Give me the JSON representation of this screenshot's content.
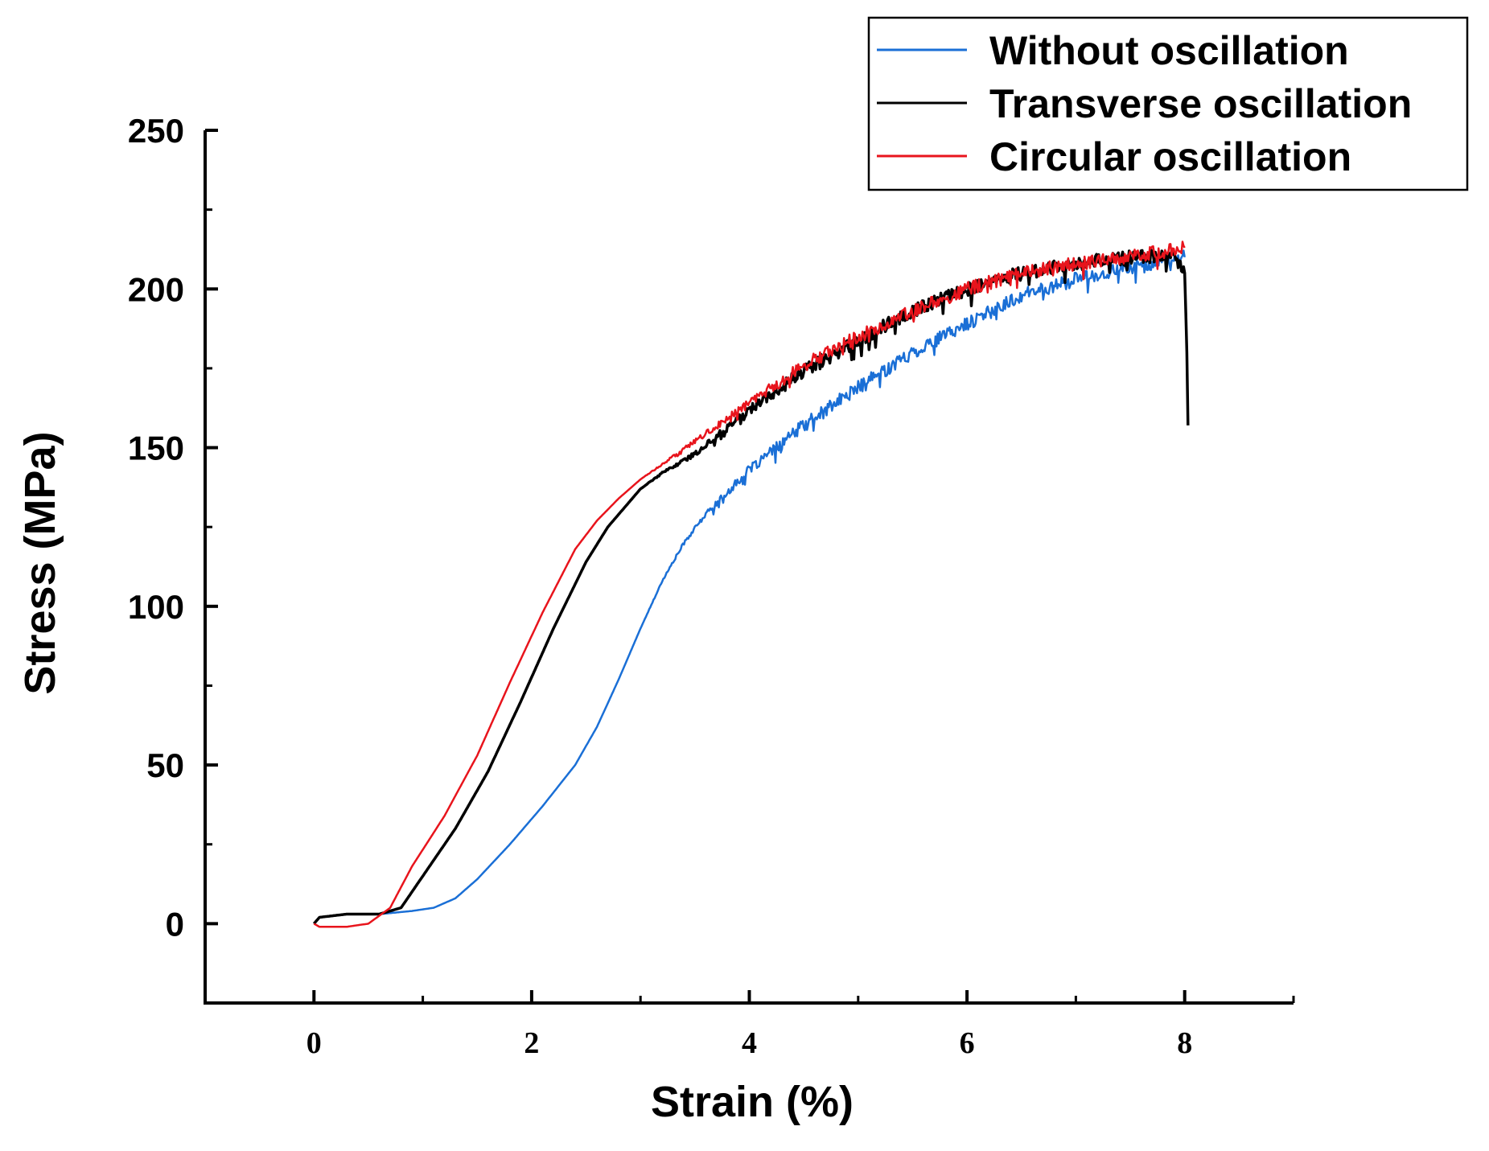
{
  "chart_data": {
    "type": "line",
    "title": "",
    "xlabel": "Strain (%)",
    "ylabel": "Stress (MPa)",
    "xlim": [
      -1,
      9
    ],
    "ylim": [
      -25,
      250
    ],
    "xticks": [
      0,
      2,
      4,
      6,
      8
    ],
    "yticks": [
      0,
      50,
      100,
      150,
      200,
      250
    ],
    "grid": false,
    "legend_position": "top-right",
    "colors": {
      "axis": "#000000",
      "without": "#1a6fd6",
      "transverse": "#000000",
      "circular": "#e8141c"
    },
    "series": [
      {
        "name": "Without oscillation",
        "color": "#1a6fd6",
        "noise": 2.2,
        "x": [
          0,
          0.05,
          0.3,
          0.6,
          0.9,
          1.1,
          1.3,
          1.5,
          1.8,
          2.1,
          2.4,
          2.6,
          2.8,
          3.0,
          3.2,
          3.4,
          3.6,
          3.8,
          4.0,
          4.5,
          5.0,
          5.5,
          6.0,
          6.5,
          7.0,
          7.5,
          8.0
        ],
        "y": [
          0,
          2,
          3,
          3,
          4,
          5,
          8,
          14,
          25,
          37,
          50,
          62,
          77,
          93,
          108,
          120,
          129,
          136,
          143,
          157,
          169,
          180,
          189,
          198,
          203,
          207,
          210
        ]
      },
      {
        "name": "Transverse oscillation",
        "color": "#000000",
        "noise": 2.2,
        "x": [
          0,
          0.05,
          0.3,
          0.6,
          0.8,
          1.0,
          1.3,
          1.6,
          1.9,
          2.2,
          2.5,
          2.7,
          2.9,
          3.0,
          3.2,
          3.5,
          4.0,
          4.5,
          5.0,
          5.5,
          6.0,
          6.5,
          7.0,
          7.5,
          7.9,
          8.0,
          8.02,
          8.03
        ],
        "y": [
          0,
          2,
          3,
          3,
          5,
          15,
          30,
          48,
          70,
          93,
          114,
          125,
          133,
          137,
          142,
          148,
          162,
          174,
          184,
          193,
          200,
          205,
          208,
          210,
          211,
          205,
          180,
          157
        ]
      },
      {
        "name": "Circular oscillation",
        "color": "#e8141c",
        "noise": 2.2,
        "x": [
          0,
          0.05,
          0.3,
          0.5,
          0.7,
          0.9,
          1.2,
          1.5,
          1.8,
          2.1,
          2.4,
          2.6,
          2.8,
          3.0,
          3.5,
          4.0,
          4.5,
          5.0,
          5.5,
          6.0,
          6.5,
          7.0,
          7.5,
          8.0
        ],
        "y": [
          0,
          -1,
          -1,
          0,
          5,
          18,
          34,
          53,
          76,
          98,
          118,
          127,
          134,
          140,
          152,
          164,
          176,
          185,
          193,
          200,
          205,
          208,
          210,
          213
        ]
      }
    ]
  }
}
